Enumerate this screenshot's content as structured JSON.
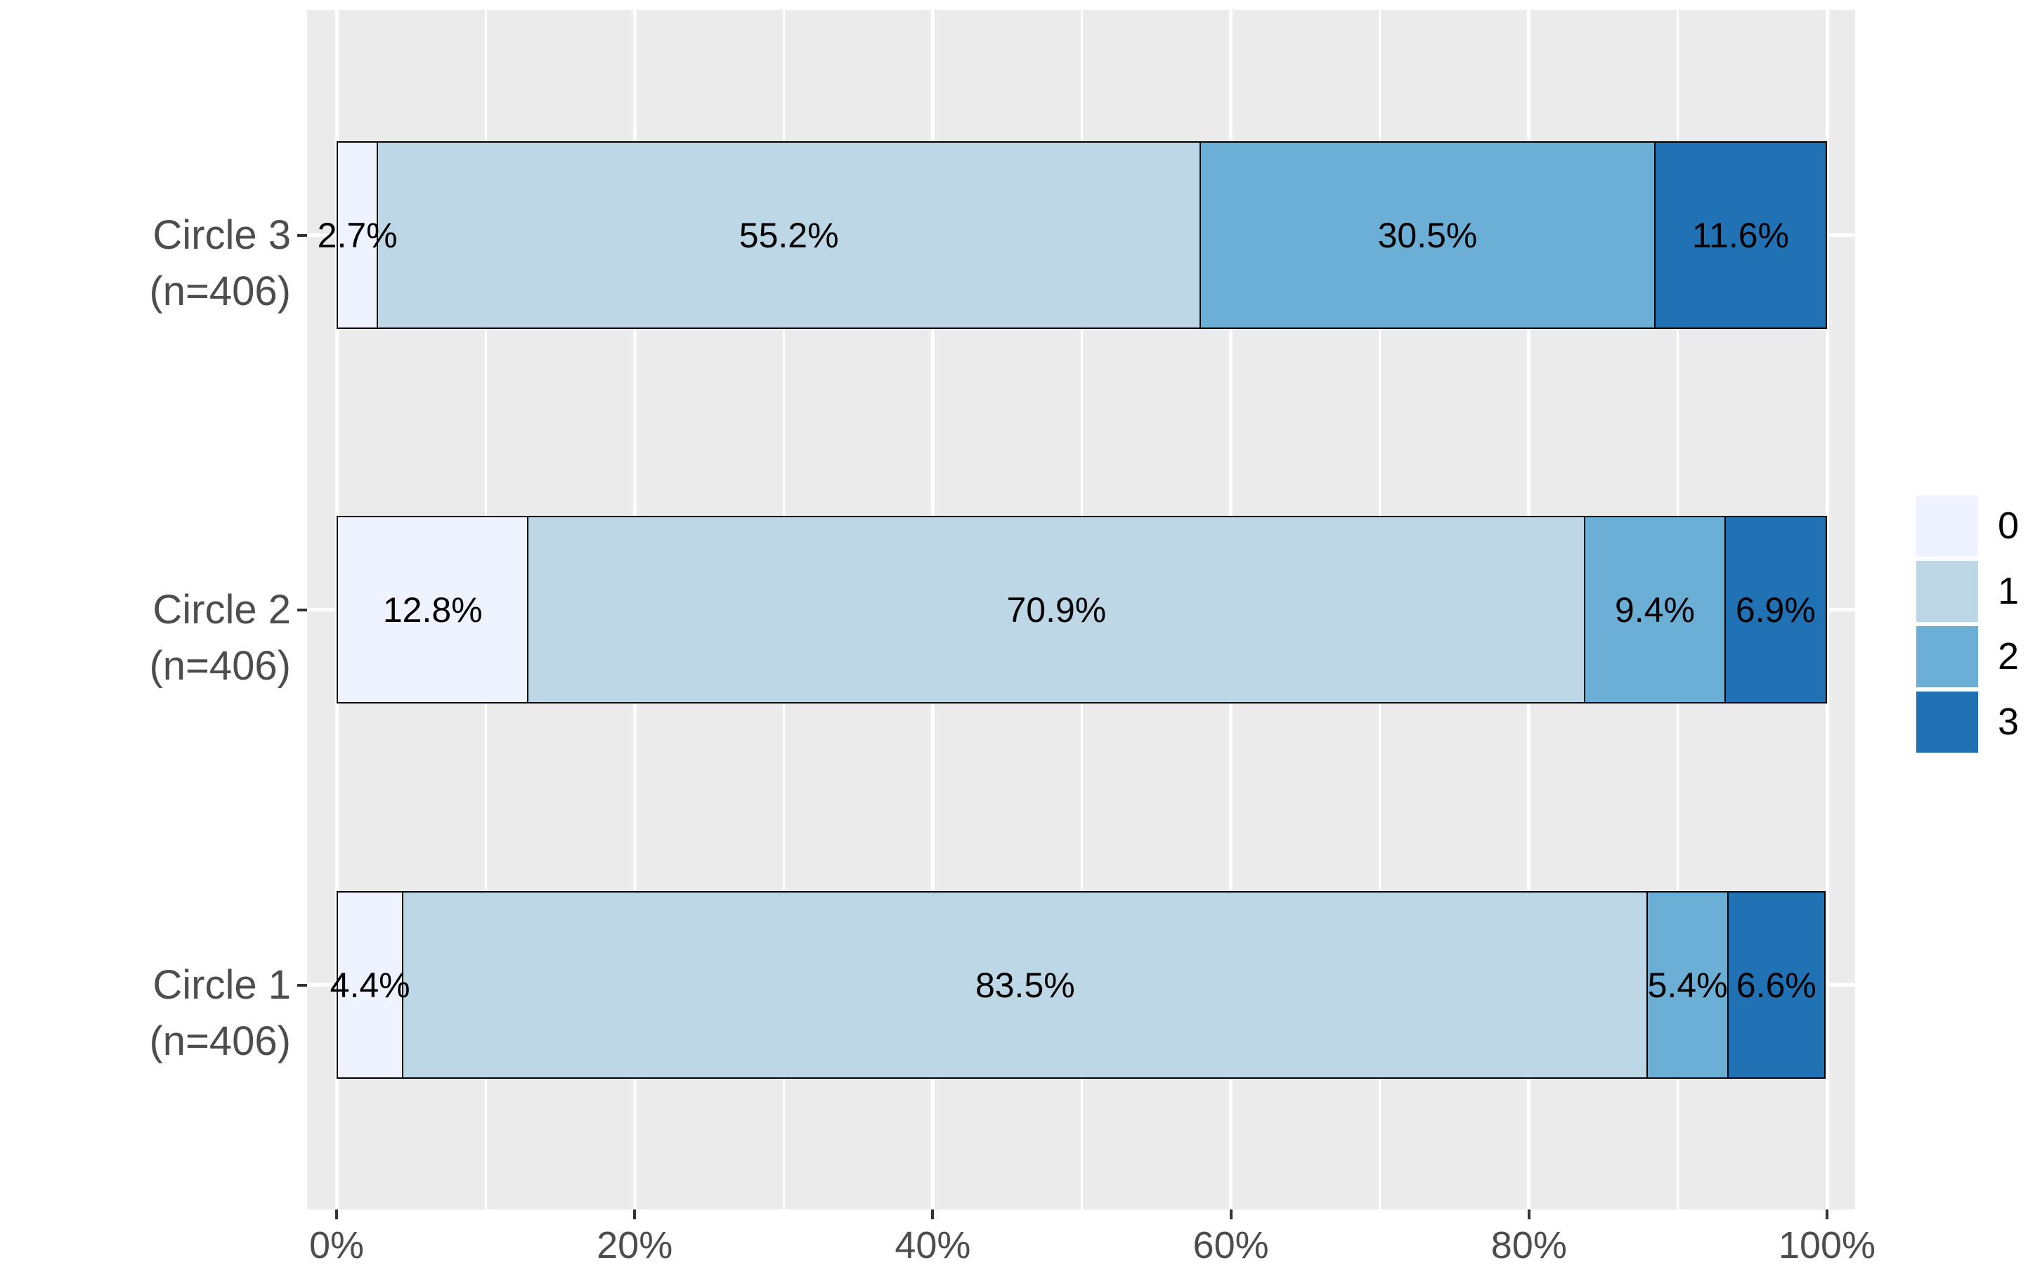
{
  "chart_data": {
    "type": "bar",
    "orientation": "horizontal",
    "stacked": true,
    "value_unit": "percent",
    "title": "",
    "xlabel": "",
    "ylabel": "",
    "categories_top_to_bottom": [
      "Circle 3 (n=406)",
      "Circle 2 (n=406)",
      "Circle 1 (n=406)"
    ],
    "series": [
      {
        "name": "0",
        "color": "#EFF3FF",
        "values_top_to_bottom": [
          2.7,
          12.8,
          4.4
        ]
      },
      {
        "name": "1",
        "color": "#BDD7E7",
        "values_top_to_bottom": [
          55.2,
          70.9,
          83.5
        ]
      },
      {
        "name": "2",
        "color": "#6BAED6",
        "values_top_to_bottom": [
          30.5,
          9.4,
          5.4
        ]
      },
      {
        "name": "3",
        "color": "#2171B5",
        "values_top_to_bottom": [
          11.6,
          6.9,
          6.6
        ]
      }
    ],
    "bar_labels_top_to_bottom": [
      [
        "2.7%",
        "55.2%",
        "30.5%",
        "11.6%"
      ],
      [
        "12.8%",
        "70.9%",
        "9.4%",
        "6.9%"
      ],
      [
        "4.4%",
        "83.5%",
        "5.4%",
        "6.6%"
      ]
    ],
    "x_axis": {
      "range": [
        0,
        100
      ],
      "tick_values": [
        0,
        20,
        40,
        60,
        80,
        100
      ],
      "tick_labels": [
        "0%",
        "20%",
        "40%",
        "60%",
        "80%",
        "100%"
      ],
      "minor_tick_values": [
        10,
        30,
        50,
        70,
        90
      ],
      "grid": true
    },
    "legend": {
      "position": "right",
      "items": [
        {
          "label": "0",
          "color": "#EFF3FF"
        },
        {
          "label": "1",
          "color": "#BDD7E7"
        },
        {
          "label": "2",
          "color": "#6BAED6"
        },
        {
          "label": "3",
          "color": "#2171B5"
        }
      ]
    },
    "style": {
      "panel_bg": "#EBEBEB",
      "grid_color": "#FFFFFF",
      "axis_text_color": "#4D4D4D",
      "tick_mark_color": "#333333",
      "bar_border_color": "#000000",
      "bar_label_color": "#000000",
      "background": "#FFFFFF"
    }
  }
}
